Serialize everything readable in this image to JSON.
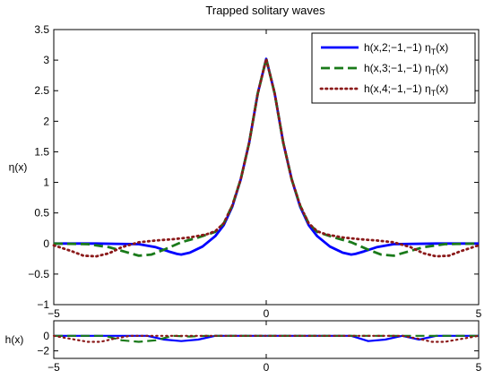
{
  "chart_data": [
    {
      "type": "line",
      "title": "Trapped solitary waves",
      "ylabel": "η(x)",
      "xlim": [
        -5,
        5
      ],
      "ylim": [
        -1,
        3.5
      ],
      "xticks": [
        "−5",
        "0",
        "5"
      ],
      "yticks": [
        {
          "v": 3.5,
          "label": "3.5"
        },
        {
          "v": 3,
          "label": "3"
        },
        {
          "v": 2.5,
          "label": "2.5"
        },
        {
          "v": 2,
          "label": "2"
        },
        {
          "v": 1.5,
          "label": "1.5"
        },
        {
          "v": 1,
          "label": "1"
        },
        {
          "v": 0.5,
          "label": "0.5"
        },
        {
          "v": 0,
          "label": "0"
        },
        {
          "v": -0.5,
          "label": "−0.5"
        },
        {
          "v": -1,
          "label": "−1"
        }
      ],
      "legend_position": "top-right",
      "series": [
        {
          "name": "h(x,2;−1,−1) η",
          "sub": "T",
          "suffix": "(x)",
          "color": "#0000ff",
          "style": "solid",
          "x": [
            -5,
            -4,
            -3,
            -2.6,
            -2.3,
            -2.1,
            -2,
            -1.8,
            -1.5,
            -1.2,
            -1,
            -0.8,
            -0.6,
            -0.4,
            -0.2,
            0,
            0.2,
            0.4,
            0.6,
            0.8,
            1,
            1.2,
            1.5,
            1.8,
            2,
            2.1,
            2.3,
            2.6,
            3,
            4,
            5
          ],
          "y": [
            0,
            0,
            -0.01,
            -0.06,
            -0.13,
            -0.17,
            -0.18,
            -0.15,
            -0.05,
            0.12,
            0.3,
            0.6,
            1.05,
            1.65,
            2.45,
            3.02,
            2.45,
            1.65,
            1.05,
            0.6,
            0.3,
            0.12,
            -0.05,
            -0.15,
            -0.18,
            -0.17,
            -0.13,
            -0.06,
            -0.01,
            0,
            0
          ]
        },
        {
          "name": "h(x,3;−1,−1) η",
          "sub": "T",
          "suffix": "(x)",
          "color": "#1a7a1a",
          "style": "dashed",
          "x": [
            -5,
            -4.2,
            -3.7,
            -3.3,
            -3,
            -2.7,
            -2.4,
            -2,
            -1.6,
            -1.2,
            -1,
            -0.8,
            -0.6,
            -0.4,
            -0.2,
            0,
            0.2,
            0.4,
            0.6,
            0.8,
            1,
            1.2,
            1.6,
            2,
            2.4,
            2.7,
            3,
            3.3,
            3.7,
            4.2,
            5
          ],
          "y": [
            0,
            -0.01,
            -0.06,
            -0.14,
            -0.2,
            -0.18,
            -0.1,
            0.02,
            0.1,
            0.19,
            0.33,
            0.62,
            1.05,
            1.65,
            2.45,
            3.02,
            2.45,
            1.65,
            1.05,
            0.62,
            0.33,
            0.19,
            0.1,
            0.02,
            -0.1,
            -0.18,
            -0.2,
            -0.14,
            -0.06,
            -0.01,
            0
          ]
        },
        {
          "name": "h(x,4;−1,−1) η",
          "sub": "T",
          "suffix": "(x)",
          "color": "#8b1a1a",
          "style": "dotted",
          "x": [
            -5,
            -4.6,
            -4.3,
            -4,
            -3.7,
            -3.4,
            -3,
            -2.6,
            -2.2,
            -1.8,
            -1.4,
            -1.2,
            -1,
            -0.8,
            -0.6,
            -0.4,
            -0.2,
            0,
            0.2,
            0.4,
            0.6,
            0.8,
            1,
            1.2,
            1.4,
            1.8,
            2.2,
            2.6,
            3,
            3.4,
            3.7,
            4,
            4.3,
            4.6,
            5
          ],
          "y": [
            -0.03,
            -0.12,
            -0.2,
            -0.21,
            -0.16,
            -0.06,
            0.02,
            0.05,
            0.07,
            0.1,
            0.15,
            0.2,
            0.33,
            0.62,
            1.05,
            1.65,
            2.45,
            3.02,
            2.45,
            1.65,
            1.05,
            0.62,
            0.33,
            0.2,
            0.15,
            0.1,
            0.07,
            0.05,
            0.02,
            -0.06,
            -0.16,
            -0.21,
            -0.2,
            -0.12,
            -0.03
          ]
        }
      ]
    },
    {
      "type": "line",
      "ylabel": "h(x)",
      "xlim": [
        -5,
        5
      ],
      "ylim": [
        -3,
        2
      ],
      "xticks": [
        "−5",
        "0",
        "5"
      ],
      "yticks": [
        {
          "v": 0,
          "label": "0"
        },
        {
          "v": -2,
          "label": "−2"
        }
      ],
      "series": [
        {
          "color": "#0000ff",
          "style": "solid",
          "x": [
            -5,
            -2.8,
            -2.4,
            -2,
            -1.6,
            -1.2,
            2,
            2.4,
            2.8,
            3.2,
            3.6,
            4,
            5
          ],
          "y": [
            0,
            0,
            -0.5,
            -0.7,
            -0.5,
            0,
            0,
            -0.7,
            -0.5,
            0,
            -0.5,
            0,
            0
          ]
        },
        {
          "color": "#1a7a1a",
          "style": "dashed",
          "x": [
            -5,
            -3.8,
            -3.4,
            -3,
            -2.6,
            -2.2,
            -1.8,
            -1.4,
            -1,
            5
          ],
          "y": [
            0,
            0,
            -0.6,
            -0.8,
            -0.6,
            0,
            -0.1,
            0,
            0,
            0
          ]
        },
        {
          "color": "#8b1a1a",
          "style": "dotted",
          "x": [
            -5,
            -4.6,
            -4.2,
            -3.9,
            -3.6,
            -3.2,
            3.2,
            3.6,
            3.9,
            4.2,
            4.6,
            5
          ],
          "y": [
            0,
            -0.4,
            -0.8,
            -0.8,
            -0.4,
            0,
            0,
            -0.4,
            -0.8,
            -0.8,
            -0.4,
            0
          ]
        }
      ]
    }
  ]
}
